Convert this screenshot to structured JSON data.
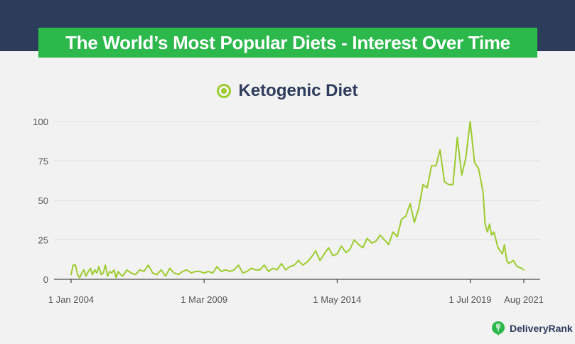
{
  "title": "The World’s Most Popular Diets - Interest Over Time",
  "brand": {
    "name": "DeliveryRank",
    "icon": "fork-location-pin-icon"
  },
  "colors": {
    "header_band": "#2e3c5c",
    "title_box": "#2db84c",
    "series": "#9ccc2e",
    "text_dark": "#2e3c5c"
  },
  "chart_data": {
    "type": "line",
    "title": "The World’s Most Popular Diets - Interest Over Time",
    "xlabel": "",
    "ylabel": "",
    "grid": true,
    "legend_position": "top-center",
    "ylim": [
      0,
      100
    ],
    "y_ticks": [
      0,
      25,
      50,
      75,
      100
    ],
    "y_tick_labels": [
      "0",
      "25",
      "50",
      "75",
      "100"
    ],
    "x_range": [
      2004.0,
      2021.583
    ],
    "x_ticks": [
      2004.0,
      2009.167,
      2014.333,
      2019.5,
      2021.583
    ],
    "x_tick_labels": [
      "1 Jan 2004",
      "1 Mar 2009",
      "1 May 2014",
      "1 Jul 2019",
      "Aug 2021"
    ],
    "series": [
      {
        "name": "Ketogenic Diet",
        "x": [
          2004.0,
          2004.08,
          2004.17,
          2004.25,
          2004.33,
          2004.42,
          2004.5,
          2004.58,
          2004.67,
          2004.75,
          2004.83,
          2004.92,
          2005.0,
          2005.08,
          2005.17,
          2005.25,
          2005.33,
          2005.42,
          2005.5,
          2005.58,
          2005.67,
          2005.75,
          2005.83,
          2005.92,
          2006.0,
          2006.17,
          2006.33,
          2006.5,
          2006.67,
          2006.83,
          2007.0,
          2007.17,
          2007.33,
          2007.5,
          2007.67,
          2007.83,
          2008.0,
          2008.17,
          2008.33,
          2008.5,
          2008.67,
          2008.83,
          2009.0,
          2009.17,
          2009.33,
          2009.5,
          2009.67,
          2009.83,
          2010.0,
          2010.17,
          2010.33,
          2010.5,
          2010.67,
          2010.83,
          2011.0,
          2011.17,
          2011.33,
          2011.5,
          2011.67,
          2011.83,
          2012.0,
          2012.17,
          2012.33,
          2012.5,
          2012.67,
          2012.83,
          2013.0,
          2013.17,
          2013.33,
          2013.5,
          2013.67,
          2013.83,
          2014.0,
          2014.17,
          2014.33,
          2014.5,
          2014.67,
          2014.83,
          2015.0,
          2015.17,
          2015.33,
          2015.5,
          2015.67,
          2015.83,
          2016.0,
          2016.17,
          2016.33,
          2016.5,
          2016.67,
          2016.83,
          2017.0,
          2017.17,
          2017.33,
          2017.5,
          2017.67,
          2017.83,
          2018.0,
          2018.17,
          2018.33,
          2018.5,
          2018.67,
          2018.83,
          2019.0,
          2019.17,
          2019.33,
          2019.5,
          2019.67,
          2019.83,
          2020.0,
          2020.08,
          2020.17,
          2020.25,
          2020.33,
          2020.42,
          2020.5,
          2020.58,
          2020.67,
          2020.75,
          2020.83,
          2020.92,
          2021.0,
          2021.17,
          2021.33,
          2021.5,
          2021.583
        ],
        "y": [
          3,
          9,
          9,
          3,
          1,
          4,
          6,
          2,
          5,
          7,
          3,
          6,
          4,
          8,
          3,
          4,
          9,
          2,
          5,
          4,
          6,
          1,
          5,
          3,
          2,
          6,
          4,
          3,
          6,
          5,
          9,
          4,
          3,
          6,
          2,
          7,
          4,
          3,
          5,
          6,
          4,
          5,
          5,
          4,
          5,
          4,
          8,
          5,
          6,
          5,
          6,
          9,
          4,
          5,
          7,
          6,
          6,
          9,
          5,
          7,
          6,
          10,
          6,
          8,
          9,
          12,
          9,
          11,
          14,
          18,
          12,
          16,
          20,
          15,
          16,
          21,
          17,
          19,
          25,
          22,
          20,
          26,
          23,
          24,
          28,
          25,
          22,
          30,
          27,
          38,
          40,
          48,
          36,
          45,
          60,
          58,
          72,
          72,
          82,
          62,
          60,
          60,
          90,
          66,
          77,
          100,
          74,
          70,
          55,
          35,
          30,
          35,
          28,
          30,
          25,
          20,
          18,
          16,
          22,
          12,
          10,
          12,
          8,
          7,
          6
        ]
      }
    ]
  }
}
